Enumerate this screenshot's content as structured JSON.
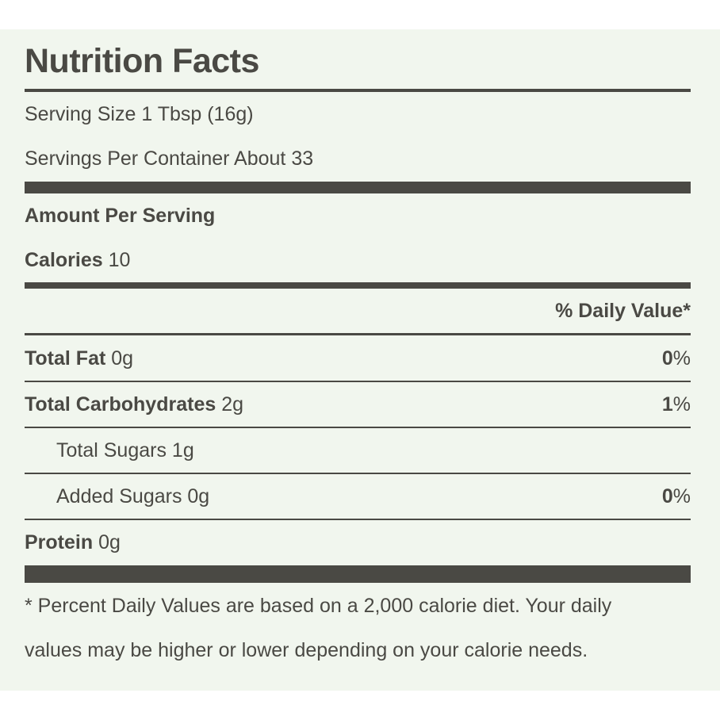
{
  "title": "Nutrition Facts",
  "serving": {
    "size_label": "Serving Size",
    "size_value": "1 Tbsp (16g)",
    "per_container_label": "Servings Per Container",
    "per_container_value": "About 33"
  },
  "amount_per_serving": "Amount Per Serving",
  "calories": {
    "label": "Calories",
    "value": "10"
  },
  "daily_value_header": "% Daily Value*",
  "nutrients": [
    {
      "label": "Total Fat",
      "amount": "0g",
      "dv_number": "0",
      "dv_unit": "%"
    },
    {
      "label": "Total Carbohydrates",
      "amount": "2g",
      "dv_number": "1",
      "dv_unit": "%"
    },
    {
      "label": "Total Sugars",
      "amount": "1g"
    },
    {
      "label": "Added Sugars",
      "amount": "0g",
      "dv_number": "0",
      "dv_unit": "%"
    },
    {
      "label": "Protein",
      "amount": "0g"
    }
  ],
  "footnote": {
    "line1": "* Percent Daily Values are based on a 2,000 calorie diet. Your daily",
    "line2": "values may be higher or lower depending on your calorie needs."
  },
  "colors": {
    "background": "#f1f6ee",
    "text": "#4a4944"
  }
}
